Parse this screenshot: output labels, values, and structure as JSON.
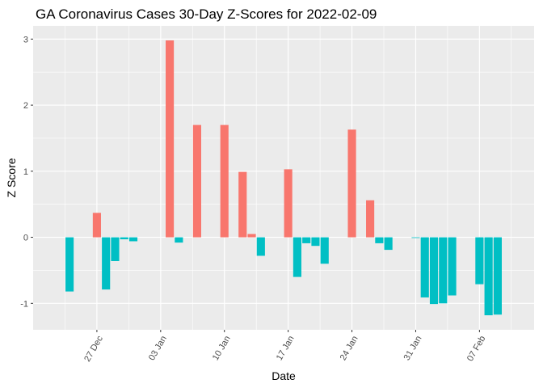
{
  "chart_data": {
    "type": "bar",
    "title": "GA Coronavirus Cases 30-Day Z-Scores for 2022-02-09",
    "xlabel": "Date",
    "ylabel": "Z Score",
    "x_range": [
      "2021-12-20",
      "2022-02-13"
    ],
    "ylim": [
      -1.4,
      3.2
    ],
    "y_ticks": [
      -1,
      0,
      1,
      2,
      3
    ],
    "x_ticks": [
      {
        "date": "2021-12-27",
        "label": "27 Dec"
      },
      {
        "date": "2022-01-03",
        "label": "03 Jan"
      },
      {
        "date": "2022-01-10",
        "label": "10 Jan"
      },
      {
        "date": "2022-01-17",
        "label": "17 Jan"
      },
      {
        "date": "2022-01-24",
        "label": "24 Jan"
      },
      {
        "date": "2022-01-31",
        "label": "31 Jan"
      },
      {
        "date": "2022-02-07",
        "label": "07 Feb"
      }
    ],
    "colors": {
      "positive": "#F8766D",
      "negative": "#00BFC4",
      "panel": "#EBEBEB",
      "grid": "#FFFFFF"
    },
    "grid": true,
    "legend": "none",
    "points": [
      {
        "date": "2021-12-24",
        "value": -0.82
      },
      {
        "date": "2021-12-27",
        "value": 0.37
      },
      {
        "date": "2021-12-28",
        "value": -0.79
      },
      {
        "date": "2021-12-29",
        "value": -0.36
      },
      {
        "date": "2021-12-30",
        "value": -0.03
      },
      {
        "date": "2021-12-31",
        "value": -0.06
      },
      {
        "date": "2022-01-04",
        "value": 2.98
      },
      {
        "date": "2022-01-05",
        "value": -0.08
      },
      {
        "date": "2022-01-07",
        "value": 1.7
      },
      {
        "date": "2022-01-10",
        "value": 1.7
      },
      {
        "date": "2022-01-12",
        "value": 0.99
      },
      {
        "date": "2022-01-13",
        "value": 0.05
      },
      {
        "date": "2022-01-14",
        "value": -0.28
      },
      {
        "date": "2022-01-17",
        "value": 1.03
      },
      {
        "date": "2022-01-18",
        "value": -0.6
      },
      {
        "date": "2022-01-19",
        "value": -0.09
      },
      {
        "date": "2022-01-20",
        "value": -0.13
      },
      {
        "date": "2022-01-21",
        "value": -0.4
      },
      {
        "date": "2022-01-24",
        "value": 1.63
      },
      {
        "date": "2022-01-26",
        "value": 0.56
      },
      {
        "date": "2022-01-27",
        "value": -0.09
      },
      {
        "date": "2022-01-28",
        "value": -0.19
      },
      {
        "date": "2022-01-31",
        "value": -0.01
      },
      {
        "date": "2022-02-01",
        "value": -0.91
      },
      {
        "date": "2022-02-02",
        "value": -1.01
      },
      {
        "date": "2022-02-03",
        "value": -1.0
      },
      {
        "date": "2022-02-04",
        "value": -0.88
      },
      {
        "date": "2022-02-07",
        "value": -0.71
      },
      {
        "date": "2022-02-08",
        "value": -1.18
      },
      {
        "date": "2022-02-09",
        "value": -1.17
      }
    ]
  }
}
